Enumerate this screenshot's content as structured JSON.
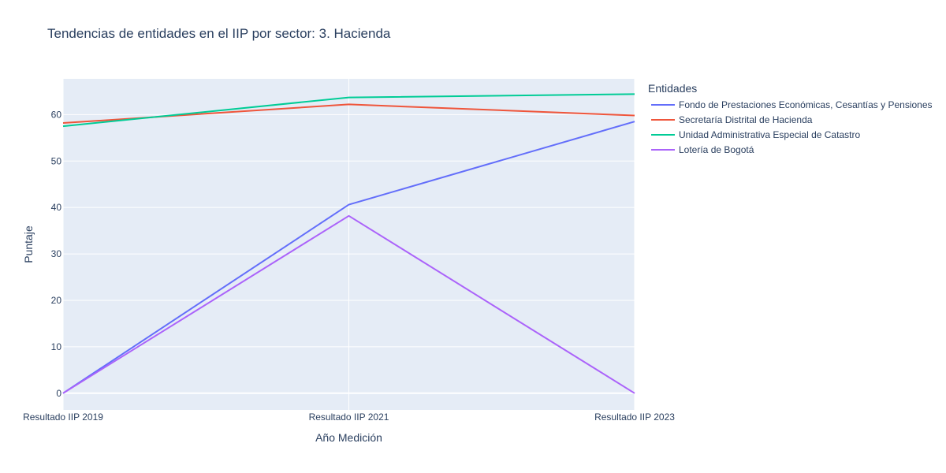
{
  "chart_data": {
    "type": "line",
    "title": "Tendencias de entidades en el IIP por sector: 3. Hacienda",
    "xlabel": "Año Medición",
    "ylabel": "Puntaje",
    "categories": [
      "Resultado IIP 2019",
      "Resultado IIP 2021",
      "Resultado IIP 2023"
    ],
    "y_ticks": [
      0,
      10,
      20,
      30,
      40,
      50,
      60
    ],
    "ylim": [
      -3.6,
      67.7
    ],
    "grid": true,
    "legend_title": "Entidades",
    "legend_position": "right",
    "series": [
      {
        "name": "Fondo de Prestaciones Económicas, Cesantías y Pensiones",
        "color": "#636efa",
        "values": [
          0,
          40.6,
          58.5
        ]
      },
      {
        "name": "Secretaría Distrital de Hacienda",
        "color": "#ef553b",
        "values": [
          58.2,
          62.2,
          59.8
        ]
      },
      {
        "name": "Unidad Administrativa Especial de Catastro",
        "color": "#00cc96",
        "values": [
          57.5,
          63.7,
          64.4
        ]
      },
      {
        "name": "Lotería de Bogotá",
        "color": "#ab63fa",
        "values": [
          0,
          38.2,
          0
        ]
      }
    ]
  }
}
